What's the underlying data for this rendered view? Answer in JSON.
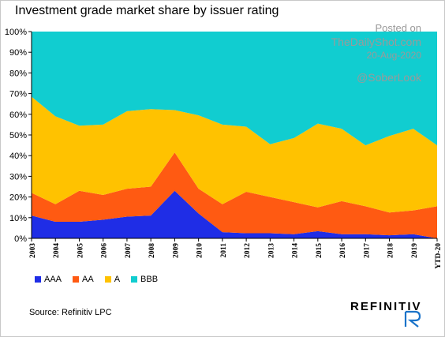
{
  "title": "Investment grade market share by issuer rating",
  "watermark": {
    "line1": "Posted on",
    "line2": "TheDailyShot.com",
    "line3": "20-Aug-2020",
    "handle": "@SoberLook"
  },
  "source": "Source: Refinitiv LPC",
  "brand": {
    "name": "REFINITIV"
  },
  "chart_data": {
    "type": "area",
    "stacked": true,
    "title": "Investment grade market share by issuer rating",
    "xlabel": "",
    "ylabel": "",
    "ylim": [
      0,
      100
    ],
    "y_ticks": [
      "0%",
      "10%",
      "20%",
      "30%",
      "40%",
      "50%",
      "60%",
      "70%",
      "80%",
      "90%",
      "100%"
    ],
    "grid": false,
    "legend_position": "bottom-left",
    "categories": [
      "2003",
      "2004",
      "2005",
      "2006",
      "2007",
      "2008",
      "2009",
      "2010",
      "2011",
      "2012",
      "2013",
      "2014",
      "2015",
      "2016",
      "2017",
      "2018",
      "2019",
      "YTD-20"
    ],
    "series": [
      {
        "name": "AAA",
        "color": "#1f2de6",
        "values": [
          11,
          8,
          8,
          9,
          10.5,
          11,
          23,
          12,
          3,
          2.5,
          2.5,
          2,
          3.5,
          2,
          2,
          1.5,
          2,
          0
        ]
      },
      {
        "name": "AA",
        "color": "#ff5a12",
        "values": [
          11,
          8.5,
          15,
          12,
          13.5,
          14,
          18.5,
          12,
          13.5,
          20,
          17.5,
          15.5,
          11.5,
          16,
          13.5,
          11,
          11.5,
          15.5
        ]
      },
      {
        "name": "A",
        "color": "#ffc200",
        "values": [
          46.5,
          42.5,
          31.5,
          34,
          37.5,
          37.5,
          20.5,
          35.5,
          38.5,
          31.5,
          25.5,
          31,
          40.5,
          35,
          29.5,
          37,
          39.5,
          29.5
        ]
      },
      {
        "name": "BBB",
        "color": "#11cdd0",
        "values": [
          31.5,
          41,
          45.5,
          45,
          38.5,
          37.5,
          38,
          40.5,
          45,
          46,
          54.5,
          51.5,
          44.5,
          47,
          55,
          50.5,
          47,
          55
        ]
      }
    ]
  }
}
